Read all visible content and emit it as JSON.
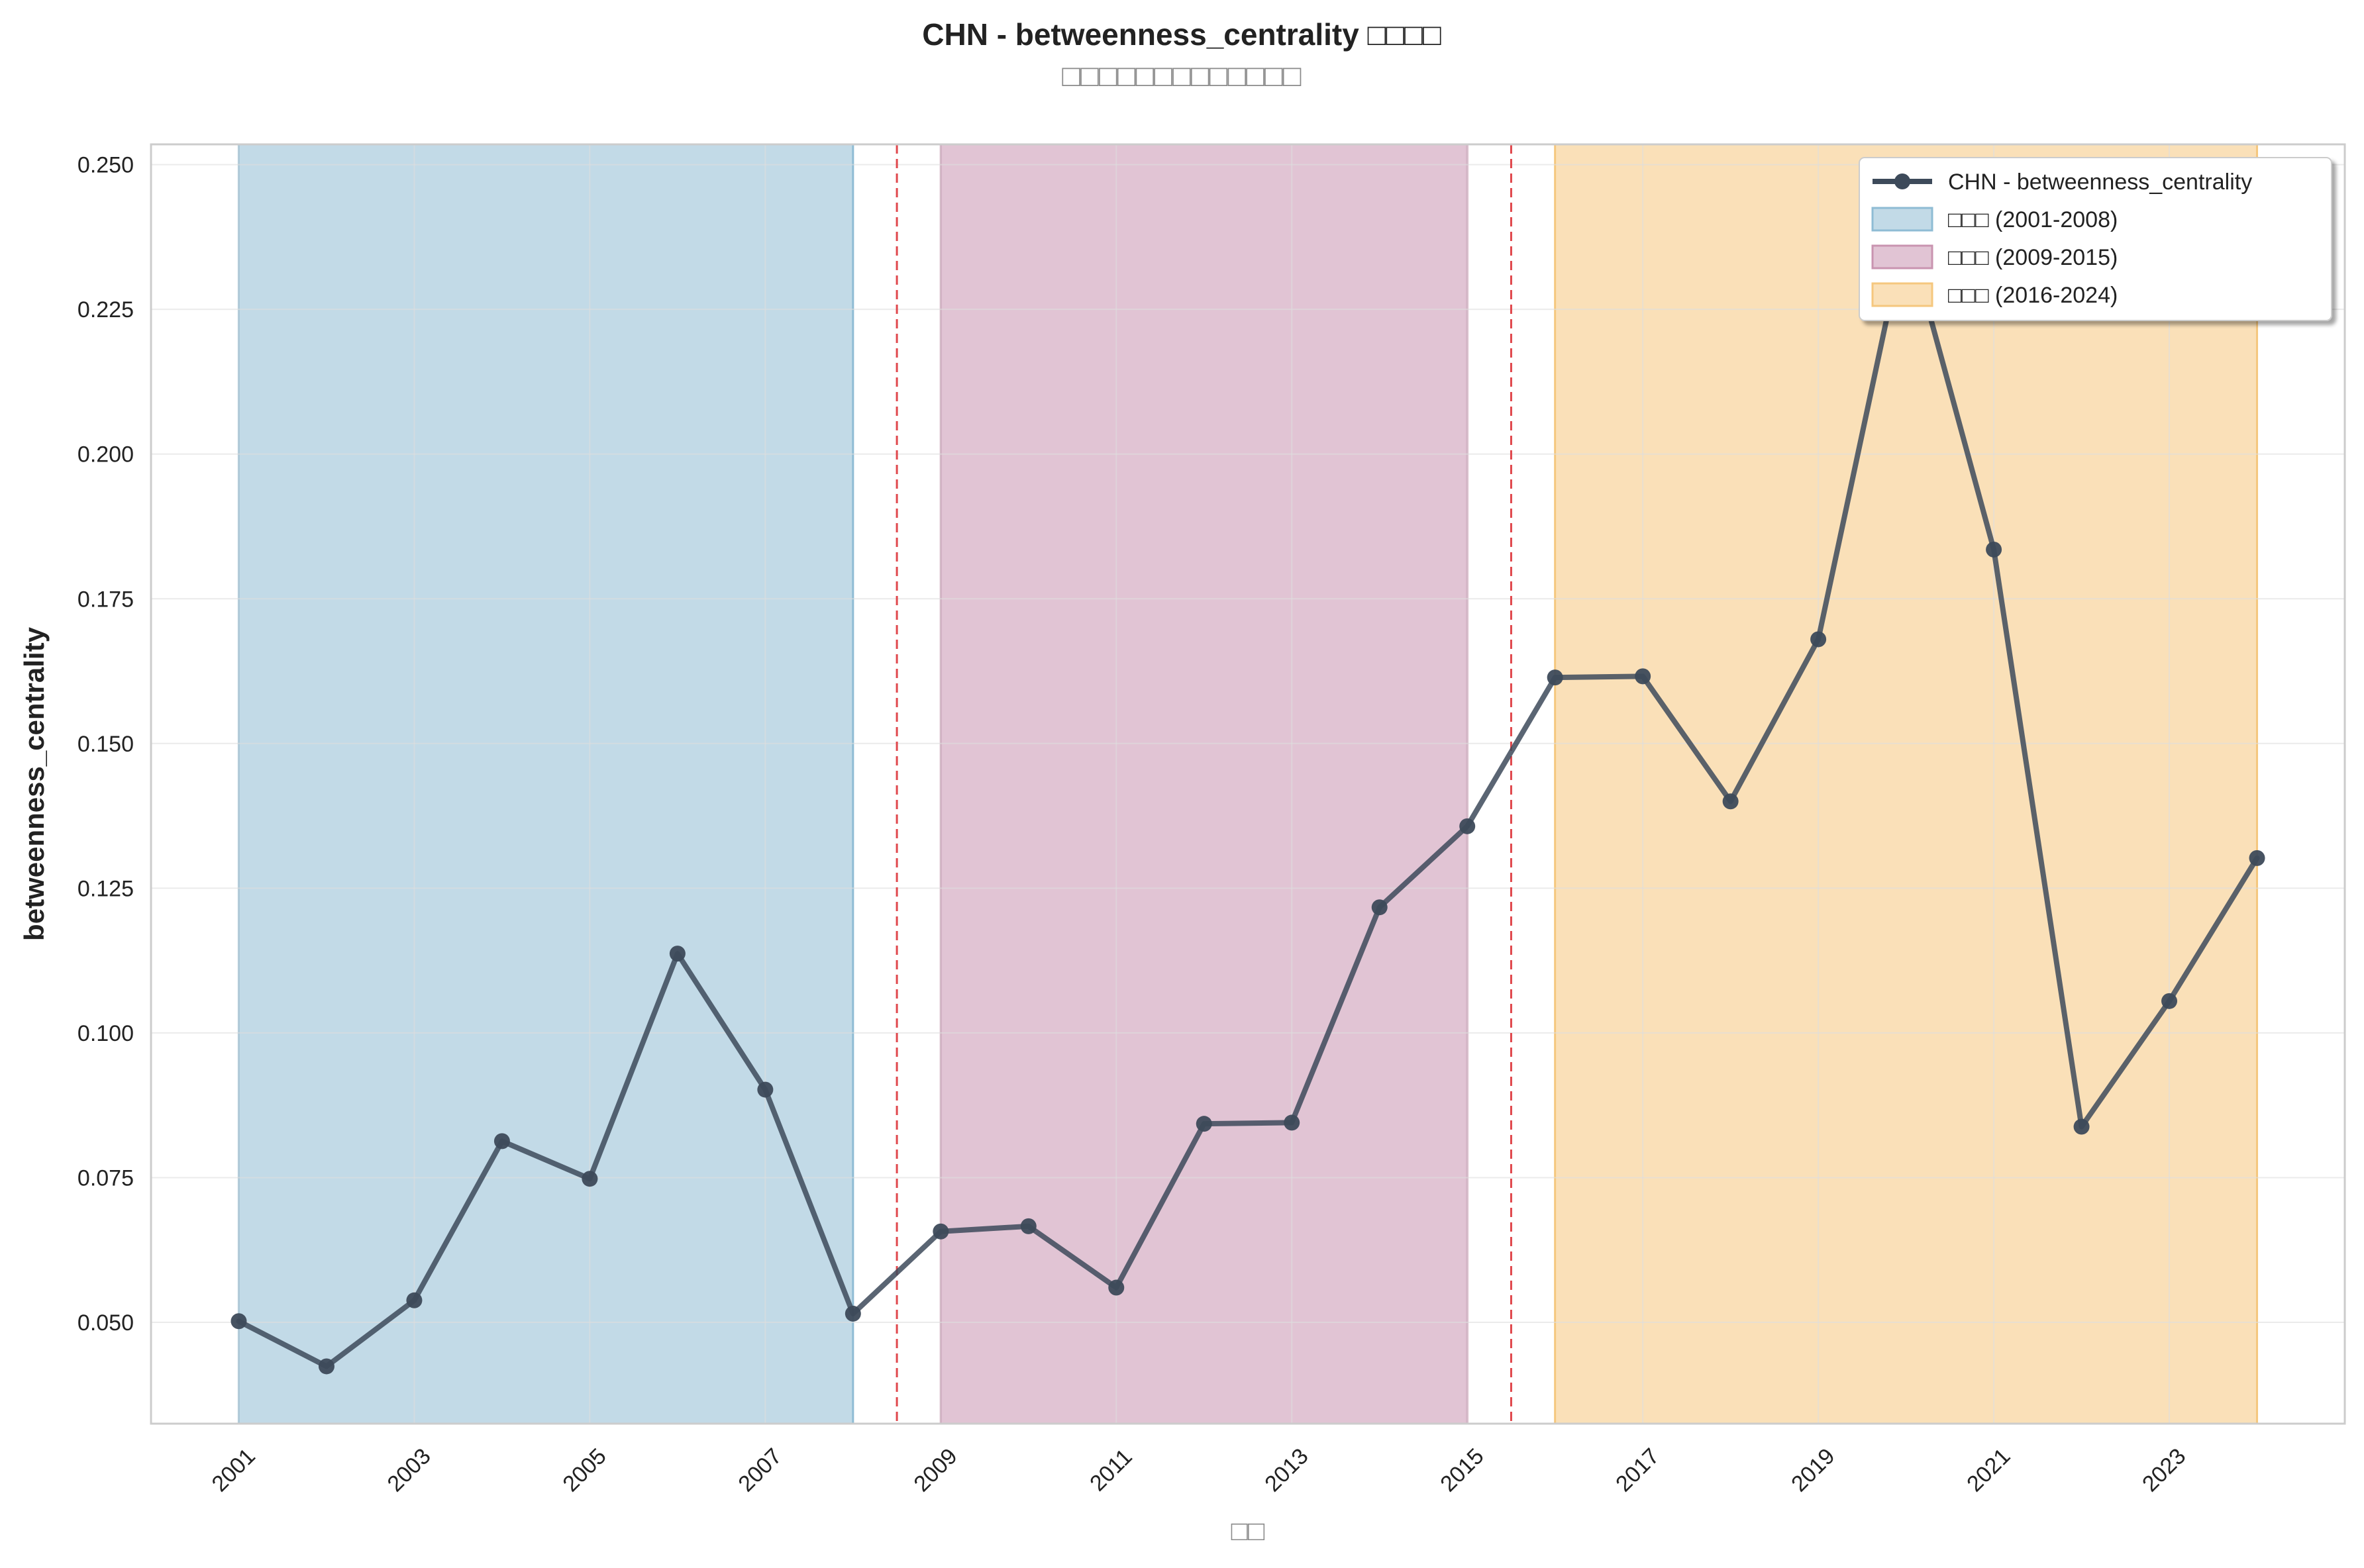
{
  "chart_data": {
    "type": "line",
    "title": "CHN - betweenness_centrality □□□□",
    "subtitle": "□□□□□□□□□□□□□",
    "xlabel": "□□",
    "ylabel": "betweenness_centrality",
    "xlim": [
      2000.0,
      2025.0
    ],
    "ylim": [
      0.0325,
      0.2535
    ],
    "x_ticks": [
      2001,
      2003,
      2005,
      2007,
      2009,
      2011,
      2013,
      2015,
      2017,
      2019,
      2021,
      2023
    ],
    "y_ticks": [
      0.05,
      0.075,
      0.1,
      0.125,
      0.15,
      0.175,
      0.2,
      0.225,
      0.25
    ],
    "grid": true,
    "legend_position": "top-right",
    "series": [
      {
        "name": "CHN - betweenness_centrality",
        "color": "#3d4a5a",
        "x": [
          2001,
          2002,
          2003,
          2004,
          2005,
          2006,
          2007,
          2008,
          2009,
          2010,
          2011,
          2012,
          2013,
          2014,
          2015,
          2016,
          2017,
          2018,
          2019,
          2020,
          2021,
          2022,
          2023,
          2024
        ],
        "y": [
          0.0502,
          0.0424,
          0.0538,
          0.0813,
          0.0748,
          0.1137,
          0.0902,
          0.0515,
          0.0657,
          0.0666,
          0.056,
          0.0843,
          0.0845,
          0.1217,
          0.1357,
          0.1614,
          0.1616,
          0.14,
          0.168,
          0.239,
          0.1835,
          0.0838,
          0.1055,
          0.1302
        ]
      }
    ],
    "periods": [
      {
        "label": "□□□ (2001-2008)",
        "start": 2001,
        "end": 2008,
        "color": "#8fbcd4"
      },
      {
        "label": "□□□ (2009-2015)",
        "start": 2009,
        "end": 2015,
        "color": "#c994b0"
      },
      {
        "label": "□□□ (2016-2024)",
        "start": 2016,
        "end": 2024,
        "color": "#f5c77e"
      }
    ],
    "dividers": [
      2008.5,
      2015.5
    ],
    "divider_color": "#e0474c"
  }
}
